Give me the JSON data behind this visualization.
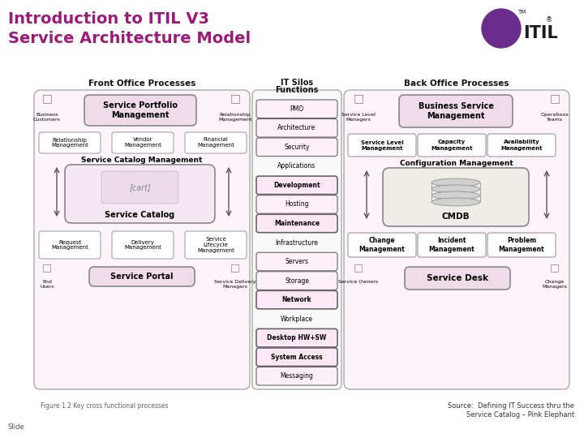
{
  "title_line1": "Introduction to ITIL V3",
  "title_line2": "Service Architecture Model",
  "title_color": "#9b1a7a",
  "bg_color": "#ffffff",
  "footer_left": "Figure 1.2 Key cross functional processes",
  "footer_right_line1": "Source:  Defining IT Success thru the",
  "footer_right_line2": "Service Catalog – Pink Elephant",
  "footer_slide": "Slide",
  "front_title": "Front Office Processes",
  "it_title_line1": "IT Silos",
  "it_title_line2": "Functions",
  "back_title": "Back Office Processes",
  "it_items": [
    {
      "label": "PMO",
      "boxed": true,
      "bold": false
    },
    {
      "label": "Architecture",
      "boxed": true,
      "bold": false
    },
    {
      "label": "Security",
      "boxed": true,
      "bold": false
    },
    {
      "label": "Applications",
      "boxed": false,
      "bold": false
    },
    {
      "label": "Development",
      "boxed": true,
      "bold": true
    },
    {
      "label": "Hosting",
      "boxed": true,
      "bold": false
    },
    {
      "label": "Maintenance",
      "boxed": true,
      "bold": true
    },
    {
      "label": "Infrastructure",
      "boxed": false,
      "bold": false
    },
    {
      "label": "Servers",
      "boxed": true,
      "bold": false
    },
    {
      "label": "Storage",
      "boxed": true,
      "bold": false
    },
    {
      "label": "Network",
      "boxed": true,
      "bold": true
    },
    {
      "label": "Workplace",
      "boxed": false,
      "bold": false
    },
    {
      "label": "Desktop HW+SW",
      "boxed": true,
      "bold": true
    },
    {
      "label": "System Access",
      "boxed": true,
      "bold": true
    },
    {
      "label": "Messaging",
      "boxed": true,
      "bold": false
    }
  ]
}
